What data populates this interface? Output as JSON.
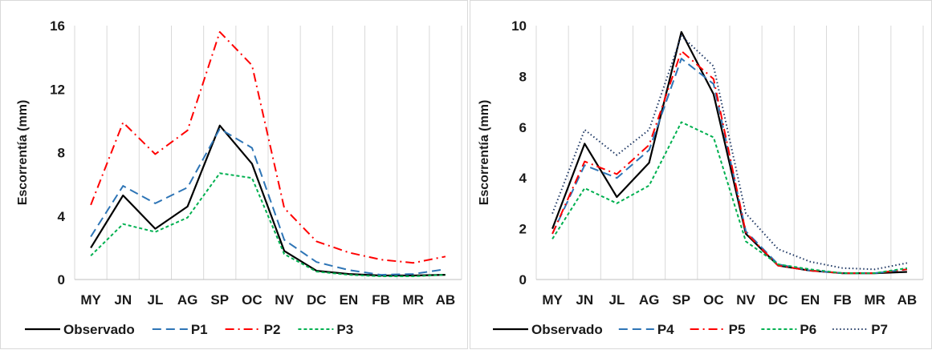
{
  "chart_data": [
    {
      "type": "line",
      "ylabel": "Escorrentía (mm)",
      "ylim": [
        0,
        16
      ],
      "yticks": [
        0,
        4,
        8,
        12,
        16
      ],
      "grid": "vertical",
      "legend_placement": "bottom",
      "categories": [
        "MY",
        "JN",
        "JL",
        "AG",
        "SP",
        "OC",
        "NV",
        "DC",
        "EN",
        "FB",
        "MR",
        "AB"
      ],
      "series": [
        {
          "name": "Observado",
          "color": "#000000",
          "style": "solid",
          "values": [
            2.0,
            5.3,
            3.2,
            4.6,
            9.7,
            7.3,
            1.8,
            0.55,
            0.35,
            0.25,
            0.25,
            0.3
          ]
        },
        {
          "name": "P1",
          "color": "#2E75B6",
          "style": "dash",
          "values": [
            2.7,
            5.9,
            4.8,
            5.8,
            9.5,
            8.3,
            2.5,
            1.1,
            0.6,
            0.3,
            0.35,
            0.65
          ]
        },
        {
          "name": "P2",
          "color": "#FF0000",
          "style": "dashdot",
          "values": [
            4.7,
            9.9,
            7.9,
            9.4,
            15.6,
            13.5,
            4.5,
            2.4,
            1.7,
            1.25,
            1.05,
            1.45
          ]
        },
        {
          "name": "P3",
          "color": "#00B050",
          "style": "dot",
          "values": [
            1.5,
            3.5,
            3.0,
            3.9,
            6.7,
            6.4,
            1.6,
            0.5,
            0.3,
            0.2,
            0.2,
            0.3
          ]
        }
      ]
    },
    {
      "type": "line",
      "ylabel": "Escorrentía (mm)",
      "ylim": [
        0,
        10
      ],
      "yticks": [
        0,
        2,
        4,
        6,
        8,
        10
      ],
      "grid": "vertical",
      "legend_placement": "bottom",
      "categories": [
        "MY",
        "JN",
        "JL",
        "AG",
        "SP",
        "OC",
        "NV",
        "DC",
        "EN",
        "FB",
        "MR",
        "AB"
      ],
      "series": [
        {
          "name": "Observado",
          "color": "#000000",
          "style": "solid",
          "values": [
            2.0,
            5.35,
            3.25,
            4.6,
            9.75,
            7.3,
            1.8,
            0.55,
            0.35,
            0.25,
            0.25,
            0.3
          ]
        },
        {
          "name": "P4",
          "color": "#2E75B6",
          "style": "dash",
          "values": [
            1.8,
            4.5,
            4.0,
            5.1,
            8.7,
            7.7,
            1.9,
            0.6,
            0.35,
            0.25,
            0.25,
            0.4
          ]
        },
        {
          "name": "P5",
          "color": "#FF0000",
          "style": "dashdot",
          "values": [
            1.8,
            4.65,
            4.15,
            5.3,
            9.0,
            7.9,
            1.85,
            0.55,
            0.35,
            0.25,
            0.25,
            0.4
          ]
        },
        {
          "name": "P6",
          "color": "#00B050",
          "style": "dot",
          "values": [
            1.6,
            3.6,
            3.0,
            3.7,
            6.2,
            5.6,
            1.5,
            0.6,
            0.4,
            0.25,
            0.25,
            0.45
          ]
        },
        {
          "name": "P7",
          "color": "#1F3864",
          "style": "fine-dot",
          "values": [
            2.6,
            5.9,
            4.9,
            5.9,
            9.6,
            8.4,
            2.6,
            1.2,
            0.7,
            0.45,
            0.4,
            0.65
          ]
        }
      ]
    }
  ]
}
